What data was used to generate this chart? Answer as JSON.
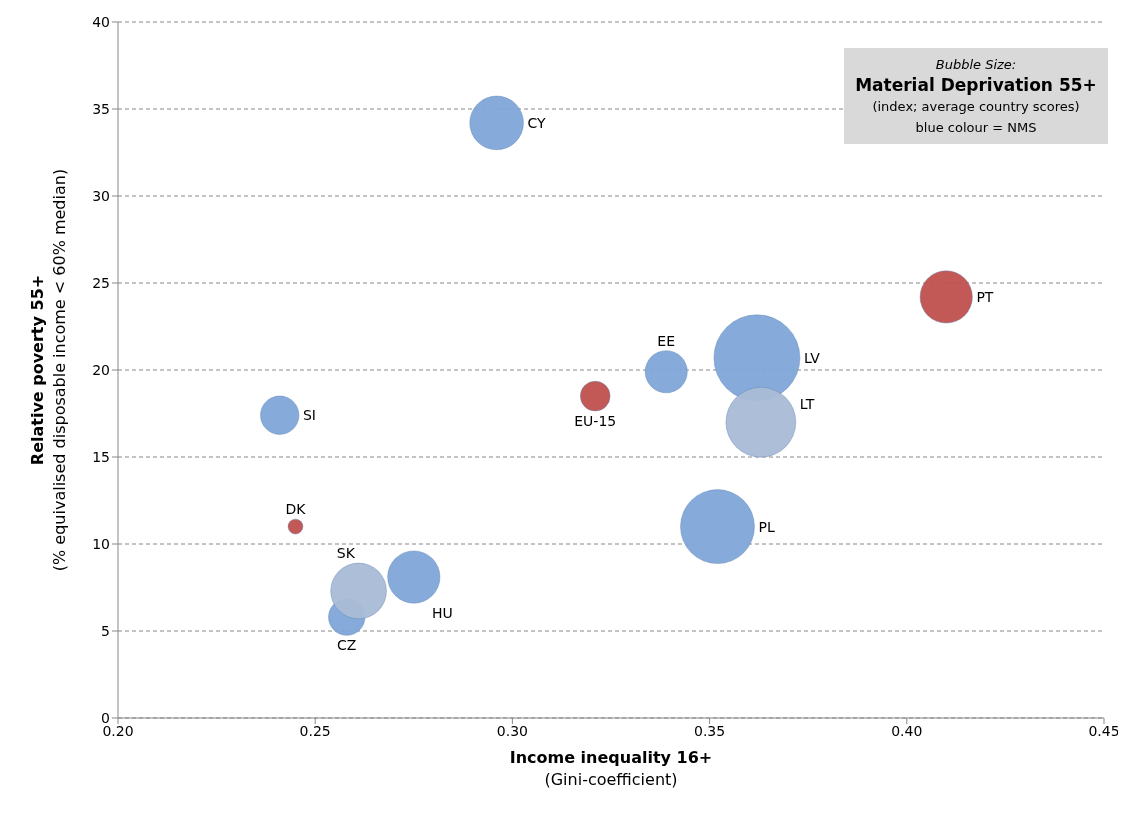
{
  "chart_data": {
    "type": "bubble",
    "xlabel": "Income inequality 16+\n(Gini-coefficient)",
    "ylabel": "Relative poverty 55+\n(% equivalised disposable income < 60% median)",
    "series": [
      {
        "name": "CY",
        "color": "#7fa6d9",
        "x": [
          0.296
        ],
        "values": [
          34.2
        ],
        "sizes": [
          0.39
        ]
      },
      {
        "name": "PT",
        "color": "#c0504d",
        "x": [
          0.41
        ],
        "values": [
          24.2
        ],
        "sizes": [
          0.37
        ]
      },
      {
        "name": "EE",
        "color": "#7fa6d9",
        "x": [
          0.339
        ],
        "values": [
          19.9
        ],
        "sizes": [
          0.24
        ]
      },
      {
        "name": "LV",
        "color": "#7fa6d9",
        "x": [
          0.362
        ],
        "values": [
          20.7
        ],
        "sizes": [
          1
        ]
      },
      {
        "name": "LT",
        "color": "#a9bcd6",
        "x": [
          0.363
        ],
        "values": [
          17.0
        ],
        "sizes": [
          0.66
        ]
      },
      {
        "name": "EU-15",
        "color": "#c0504d",
        "x": [
          0.321
        ],
        "values": [
          18.5
        ],
        "sizes": [
          0.12
        ]
      },
      {
        "name": "SI",
        "color": "#7fa6d9",
        "x": [
          0.241
        ],
        "values": [
          17.4
        ],
        "sizes": [
          0.2
        ]
      },
      {
        "name": "DK",
        "color": "#c0504d",
        "x": [
          0.245
        ],
        "values": [
          11.0
        ],
        "sizes": [
          0.03
        ]
      },
      {
        "name": "PL",
        "color": "#7fa6d9",
        "x": [
          0.352
        ],
        "values": [
          11.0
        ],
        "sizes": [
          0.74
        ]
      },
      {
        "name": "CZ",
        "color": "#7fa6d9",
        "x": [
          0.258
        ],
        "values": [
          5.8
        ],
        "sizes": [
          0.18
        ]
      },
      {
        "name": "SK",
        "color": "#a9bcd6",
        "x": [
          0.261
        ],
        "values": [
          7.3
        ],
        "sizes": [
          0.42
        ]
      },
      {
        "name": "HU",
        "color": "#7fa6d9",
        "x": [
          0.275
        ],
        "values": [
          8.1
        ],
        "sizes": [
          0.37
        ]
      }
    ],
    "xlim": [
      0.2,
      0.45
    ],
    "xticks": [
      {
        "value": 0.2,
        "label": "0.20"
      },
      {
        "value": 0.25,
        "label": "0.25"
      },
      {
        "value": 0.3,
        "label": "0.30"
      },
      {
        "value": 0.35,
        "label": "0.35"
      },
      {
        "value": 0.4,
        "label": "0.40"
      },
      {
        "value": 0.45,
        "label": "0.45"
      }
    ],
    "ylim": [
      0,
      40
    ],
    "yticks": [
      0,
      5,
      10,
      15,
      20,
      25,
      30,
      35,
      40
    ],
    "grid": "y",
    "legend": false,
    "annotations": [
      "Bubble Size:",
      "Material Deprivation 55+",
      "(index; average country scores)",
      "blue colour = NMS"
    ]
  }
}
